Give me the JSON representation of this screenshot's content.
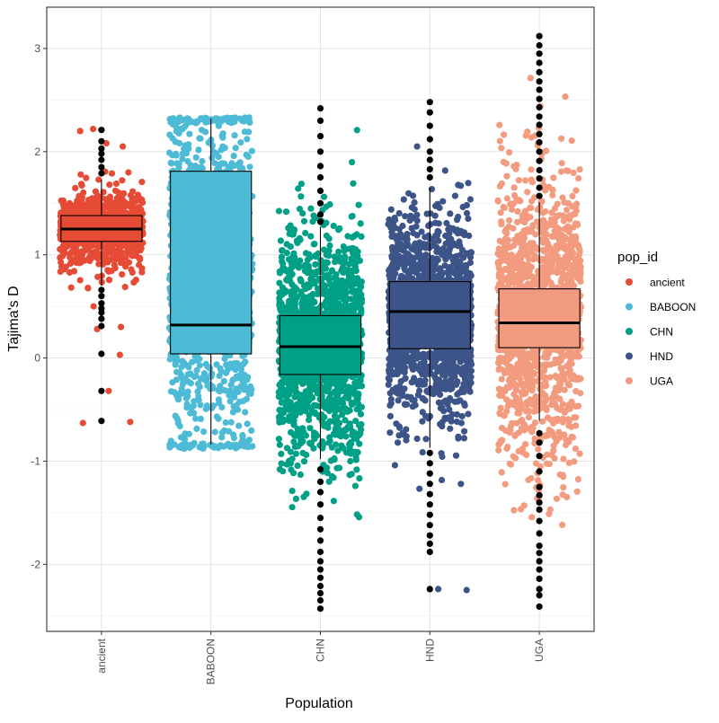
{
  "chart_data": {
    "type": "box",
    "xlabel": "Population",
    "ylabel": "Tajima's D",
    "categories": [
      "ancient",
      "BABOON",
      "CHN",
      "HND",
      "UGA"
    ],
    "ylim": [
      -2.65,
      3.4
    ],
    "yticks": [
      -2,
      -1,
      0,
      1,
      2,
      3
    ],
    "ytick_labels": [
      "-2",
      "-1",
      "0",
      "1",
      "2",
      "3"
    ],
    "grid": true,
    "legend": {
      "title": "pop_id",
      "placement": "right",
      "entries": [
        "ancient",
        "BABOON",
        "CHN",
        "HND",
        "UGA"
      ]
    },
    "colors": {
      "ancient": "#E64B35",
      "BABOON": "#4DBBD5",
      "CHN": "#00A087",
      "HND": "#3C5488",
      "UGA": "#F39B7F"
    },
    "series": [
      {
        "name": "ancient",
        "box": {
          "whisker_low": 0.7,
          "q1": 1.13,
          "median": 1.25,
          "q3": 1.38,
          "whisker_high": 1.73
        },
        "outliers": [
          2.21,
          2.1,
          2.03,
          1.98,
          1.92,
          1.85,
          1.79,
          0.66,
          0.6,
          0.53,
          0.48,
          0.44,
          0.38,
          0.31,
          0.04,
          -0.32,
          -0.61
        ],
        "jitter": {
          "count": 700,
          "center": 1.25,
          "spread": 0.2,
          "min": 0.5,
          "max": 2.1,
          "extra": [
            2.2,
            2.22,
            2.05,
            2.08,
            0.5,
            0.3,
            0.28,
            -0.32,
            -0.62,
            -0.63,
            0.03,
            0.68
          ]
        }
      },
      {
        "name": "BABOON",
        "box": {
          "whisker_low": -0.84,
          "q1": 0.04,
          "median": 0.32,
          "q3": 1.81,
          "whisker_high": 2.32
        },
        "outliers": [],
        "jitter": {
          "count": 1100,
          "center": 0.8,
          "spread": 1.0,
          "min": -0.88,
          "max": 2.33,
          "extra": []
        }
      },
      {
        "name": "CHN",
        "box": {
          "whisker_low": -0.98,
          "q1": -0.16,
          "median": 0.11,
          "q3": 0.41,
          "whisker_high": 1.27
        },
        "outliers": [
          2.42,
          2.3,
          2.15,
          2.0,
          1.86,
          1.75,
          1.62,
          1.5,
          1.39,
          1.32,
          -1.08,
          -1.2,
          -1.3,
          -1.42,
          -1.55,
          -1.66,
          -1.77,
          -1.88,
          -1.97,
          -2.05,
          -2.13,
          -2.21,
          -2.28,
          -2.35,
          -2.43
        ],
        "jitter": {
          "count": 1500,
          "center": 0.11,
          "spread": 0.55,
          "min": -2.45,
          "max": 2.42,
          "extra": []
        }
      },
      {
        "name": "HND",
        "box": {
          "whisker_low": -0.87,
          "q1": 0.09,
          "median": 0.45,
          "q3": 0.74,
          "whisker_high": 1.65
        },
        "outliers": [
          2.48,
          2.38,
          2.25,
          2.12,
          2.0,
          1.92,
          1.83,
          1.75,
          -0.92,
          -1.02,
          -1.12,
          -1.22,
          -1.32,
          -1.42,
          -1.52,
          -1.62,
          -1.72,
          -1.8,
          -1.88,
          -2.24
        ],
        "jitter": {
          "count": 1500,
          "center": 0.42,
          "spread": 0.48,
          "min": -1.9,
          "max": 2.48,
          "extra": [
            -2.24,
            -2.25
          ]
        }
      },
      {
        "name": "UGA",
        "box": {
          "whisker_low": -0.61,
          "q1": 0.1,
          "median": 0.34,
          "q3": 0.67,
          "whisker_high": 1.51
        },
        "outliers": [
          3.12,
          3.03,
          2.95,
          2.86,
          2.77,
          2.68,
          2.6,
          2.51,
          2.43,
          2.34,
          2.26,
          2.17,
          2.09,
          2.0,
          1.91,
          1.82,
          1.74,
          1.65,
          1.57,
          -0.73,
          -0.82,
          -0.95,
          -1.1,
          -1.25,
          -1.33,
          -1.4,
          -1.47,
          -1.58,
          -1.7,
          -1.82,
          -1.89,
          -1.97,
          -2.05,
          -2.14,
          -2.24,
          -2.3,
          -2.41
        ],
        "jitter": {
          "count": 1400,
          "center": 0.4,
          "spread": 0.7,
          "min": -2.42,
          "max": 3.12,
          "extra": []
        }
      }
    ]
  }
}
